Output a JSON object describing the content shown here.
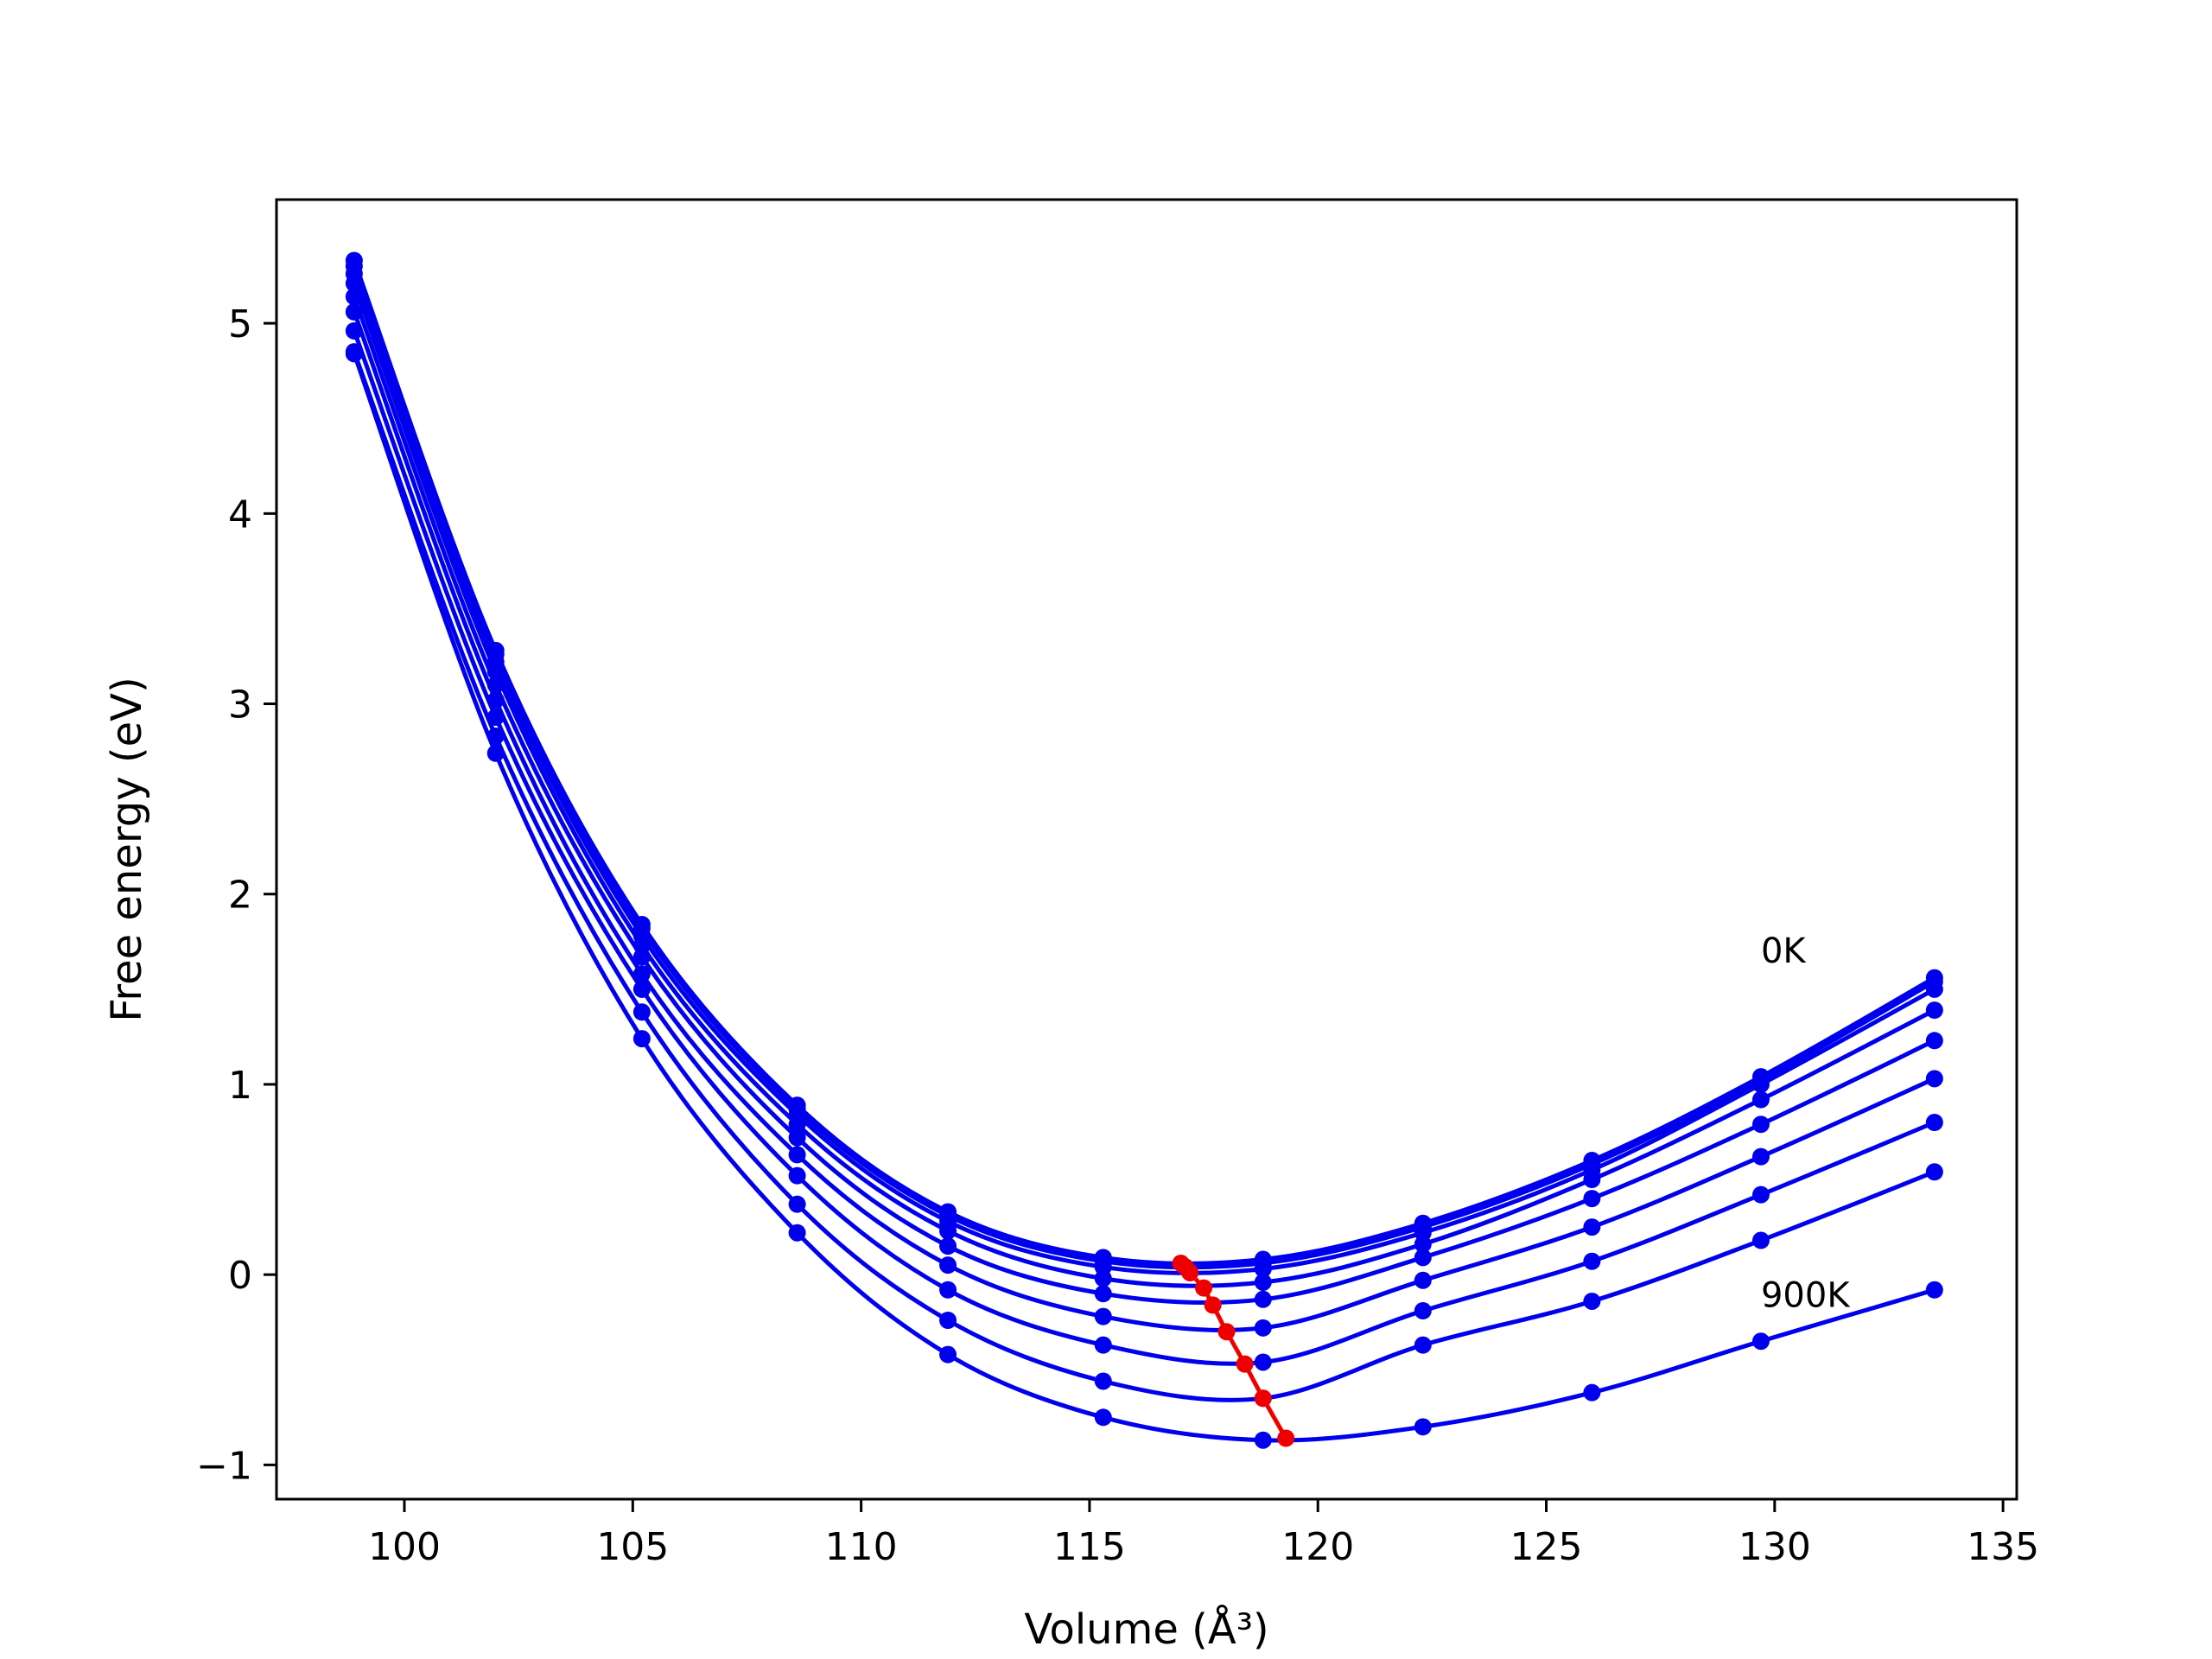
{
  "chart_data": {
    "type": "line",
    "title": "",
    "xlabel": "Volume (Å³)",
    "ylabel": "Free energy (eV)",
    "xlim": [
      97.2,
      135.3
    ],
    "ylim": [
      -1.18,
      5.65
    ],
    "xticks": [
      100,
      105,
      110,
      115,
      120,
      125,
      130,
      135
    ],
    "yticks": [
      -1,
      0,
      1,
      2,
      3,
      4,
      5
    ],
    "xtick_labels": [
      "100",
      "105",
      "110",
      "115",
      "120",
      "125",
      "130",
      "135"
    ],
    "ytick_labels": [
      "−1",
      "0",
      "1",
      "2",
      "3",
      "4",
      "5"
    ],
    "grid": false,
    "legend": "none",
    "x": [
      98.9,
      102.0,
      105.2,
      108.6,
      111.9,
      115.3,
      118.8,
      122.3,
      126.0,
      129.7,
      133.5
    ],
    "series_color": "#0000ee",
    "minima_color": "#ee0000",
    "series": [
      {
        "values": [
          5.33,
          3.28,
          1.84,
          0.89,
          0.33,
          0.09,
          0.08,
          0.27,
          0.6,
          1.04,
          1.56
        ]
      },
      {
        "values": [
          5.3,
          3.26,
          1.82,
          0.87,
          0.31,
          0.07,
          0.06,
          0.25,
          0.58,
          1.02,
          1.54
        ]
      },
      {
        "values": [
          5.26,
          3.22,
          1.78,
          0.84,
          0.28,
          0.04,
          0.03,
          0.22,
          0.55,
          1.0,
          1.5
        ]
      },
      {
        "values": [
          5.21,
          3.17,
          1.73,
          0.79,
          0.23,
          -0.02,
          -0.04,
          0.16,
          0.5,
          0.92,
          1.39
        ]
      },
      {
        "values": [
          5.14,
          3.1,
          1.67,
          0.72,
          0.15,
          -0.1,
          -0.13,
          0.09,
          0.4,
          0.79,
          1.23
        ]
      },
      {
        "values": [
          5.06,
          3.02,
          1.58,
          0.63,
          0.05,
          -0.22,
          -0.28,
          -0.03,
          0.25,
          0.62,
          1.03
        ]
      },
      {
        "values": [
          4.96,
          2.93,
          1.5,
          0.52,
          -0.08,
          -0.37,
          -0.46,
          -0.19,
          0.07,
          0.42,
          0.8
        ]
      },
      {
        "values": [
          4.85,
          2.83,
          1.38,
          0.37,
          -0.24,
          -0.56,
          -0.65,
          -0.37,
          -0.14,
          0.18,
          0.54
        ]
      },
      {
        "values": [
          4.84,
          2.74,
          1.24,
          0.22,
          -0.42,
          -0.75,
          -0.87,
          -0.8,
          -0.62,
          -0.35,
          -0.08
        ]
      }
    ],
    "minima": {
      "x": [
        117.0,
        117.1,
        117.2,
        117.5,
        117.7,
        118.0,
        118.4,
        118.8,
        119.3
      ],
      "y": [
        0.06,
        0.04,
        0.01,
        -0.07,
        -0.16,
        -0.3,
        -0.47,
        -0.65,
        -0.86
      ]
    },
    "annotations": [
      {
        "text": "0K",
        "x": 129.7,
        "y": 1.64
      },
      {
        "text": "900K",
        "x": 129.7,
        "y": -0.17
      }
    ]
  }
}
